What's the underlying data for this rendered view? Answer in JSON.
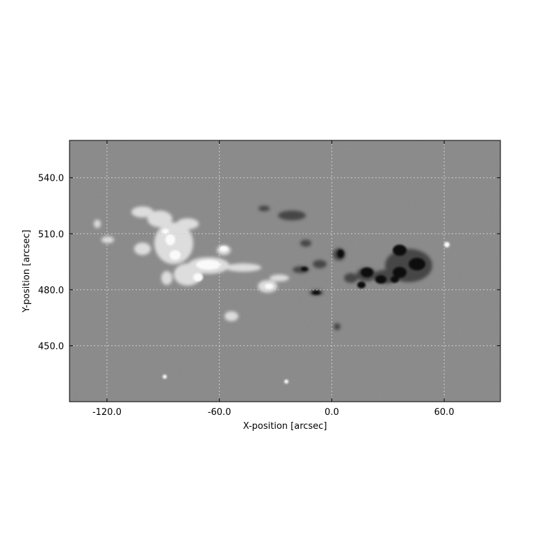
{
  "figure": {
    "xlabel": "X-position [arcsec]",
    "ylabel": "Y-position [arcsec]",
    "x_ticks": [
      "-120.0",
      "-60.0",
      "0.0",
      "60.0"
    ],
    "y_ticks": [
      "540.0",
      "510.0",
      "480.0",
      "450.0"
    ],
    "x_range": [
      -140,
      90
    ],
    "y_range": [
      420,
      560
    ],
    "grid": true,
    "colormap": "grayscale",
    "background_color": "#888888"
  }
}
